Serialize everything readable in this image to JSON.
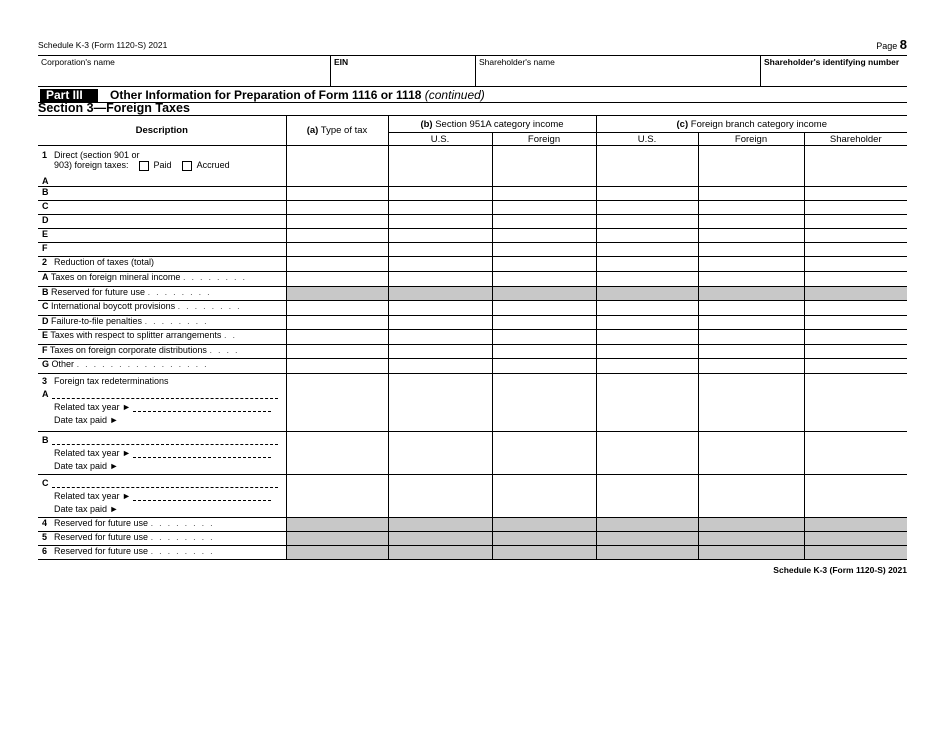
{
  "header": {
    "form_title": "Schedule K-3 (Form 1120-S) 2021",
    "page_label": "Page",
    "page_number": "8"
  },
  "id_fields": {
    "corporation": "Corporation's name",
    "ein": "EIN",
    "shareholder": "Shareholder's name",
    "shareholder_id": "Shareholder's identifying number"
  },
  "part": {
    "tag": "Part III",
    "title": "Other Information for Preparation of Form 1116 or 1118",
    "title_suffix": "(continued)"
  },
  "section": "Section 3—Foreign Taxes",
  "columns": {
    "description": "Description",
    "a_bold": "(a)",
    "a": "Type of tax",
    "b_bold": "(b)",
    "b": "Section 951A category income",
    "c_bold": "(c)",
    "c": "Foreign branch category income",
    "us": "U.S.",
    "foreign": "Foreign",
    "us2": "U.S.",
    "foreign2": "Foreign",
    "shareholder": "Shareholder"
  },
  "line1": {
    "num": "1",
    "text1": "Direct (section 901 or",
    "text2": "903) foreign taxes:",
    "paid": "Paid",
    "accrued": "Accrued",
    "paid_checked": false,
    "accrued_checked": false,
    "subs": [
      "A",
      "B",
      "C",
      "D",
      "E",
      "F"
    ]
  },
  "line2": {
    "num": "2",
    "text": "Reduction of taxes (total)",
    "items": [
      {
        "l": "A",
        "t": "Taxes on foreign mineral income",
        "shade": false
      },
      {
        "l": "B",
        "t": "Reserved for future use",
        "shade": true
      },
      {
        "l": "C",
        "t": "International boycott provisions",
        "shade": false
      },
      {
        "l": "D",
        "t": "Failure-to-file penalties",
        "shade": false
      },
      {
        "l": "E",
        "t": "Taxes with respect to splitter arrangements",
        "shade": false
      },
      {
        "l": "F",
        "t": "Taxes on foreign corporate distributions",
        "shade": false
      },
      {
        "l": "G",
        "t": "Other",
        "shade": false
      }
    ]
  },
  "line3": {
    "num": "3",
    "text": "Foreign tax redeterminations",
    "related": "Related tax year ►",
    "date": "Date tax paid ►",
    "subs": [
      "A",
      "B",
      "C"
    ]
  },
  "reserved": [
    {
      "n": "4",
      "t": "Reserved for future use"
    },
    {
      "n": "5",
      "t": "Reserved for future use"
    },
    {
      "n": "6",
      "t": "Reserved for future use"
    }
  ],
  "footer": "Schedule K-3 (Form 1120-S) 2021"
}
